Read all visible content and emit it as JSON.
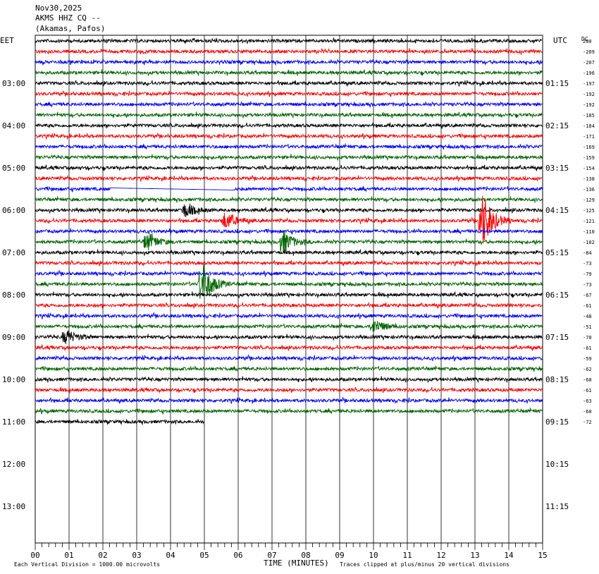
{
  "header": {
    "date": "Nov30,2025",
    "station": "AKMS HHZ CQ --",
    "location": "(Akamas, Pafos)"
  },
  "chart_data": {
    "type": "line",
    "left_tz": "EET",
    "right_tz": "UTC",
    "dc_label": "DC",
    "xlabel": "TIME (MINUTES)",
    "xticks": [
      "00",
      "01",
      "02",
      "03",
      "04",
      "05",
      "06",
      "07",
      "08",
      "09",
      "10",
      "11",
      "12",
      "13",
      "14",
      "15"
    ],
    "xlim": [
      0,
      15
    ],
    "left_hour_labels": [
      "03:00",
      "04:00",
      "05:00",
      "06:00",
      "07:00",
      "08:00",
      "09:00",
      "10:00",
      "11:00",
      "12:00",
      "13:00"
    ],
    "right_hour_labels": [
      "01:15",
      "02:15",
      "03:15",
      "04:15",
      "05:15",
      "06:15",
      "07:15",
      "08:15",
      "09:15",
      "10:15",
      "11:15"
    ],
    "trace_colors": [
      "#000000",
      "#ff0000",
      "#0000ff",
      "#006400"
    ],
    "dc_offsets": [
      "200",
      "-209",
      "-207",
      "-196",
      "-197",
      "-192",
      "-192",
      "-185",
      "-184",
      "-171",
      "-169",
      "-159",
      "-154",
      "-138",
      "-136",
      "-129",
      "-125",
      "-121",
      "-110",
      "-102",
      "-84",
      "-73",
      "-79",
      "-73",
      "-67",
      "-61",
      "-48",
      "-51",
      "-70",
      "-61",
      "-59",
      "-62",
      "-60",
      "-61",
      "-63",
      "-60",
      "-72"
    ],
    "rows_total": 48,
    "rows_with_data": 37,
    "last_row_end_minute": 5.0,
    "events": [
      {
        "row": 17,
        "minute": 5.6,
        "amp": 1.5
      },
      {
        "row": 17,
        "minute": 13.2,
        "amp": 5
      },
      {
        "row": 19,
        "minute": 3.3,
        "amp": 1.5
      },
      {
        "row": 19,
        "minute": 7.3,
        "amp": 2
      },
      {
        "row": 16,
        "minute": 4.4,
        "amp": 1.2
      },
      {
        "row": 23,
        "minute": 4.9,
        "amp": 4
      },
      {
        "row": 27,
        "minute": 10.0,
        "amp": 1.2
      },
      {
        "row": 28,
        "minute": 0.9,
        "amp": 1.2
      }
    ],
    "gap": {
      "row": 14,
      "from": 2.2,
      "to": 5.9
    },
    "footer_left": "Each Vertical Division = 1000.00 microvolts",
    "footer_right": "Traces clipped at plus/minus 20 vertical divisions"
  }
}
